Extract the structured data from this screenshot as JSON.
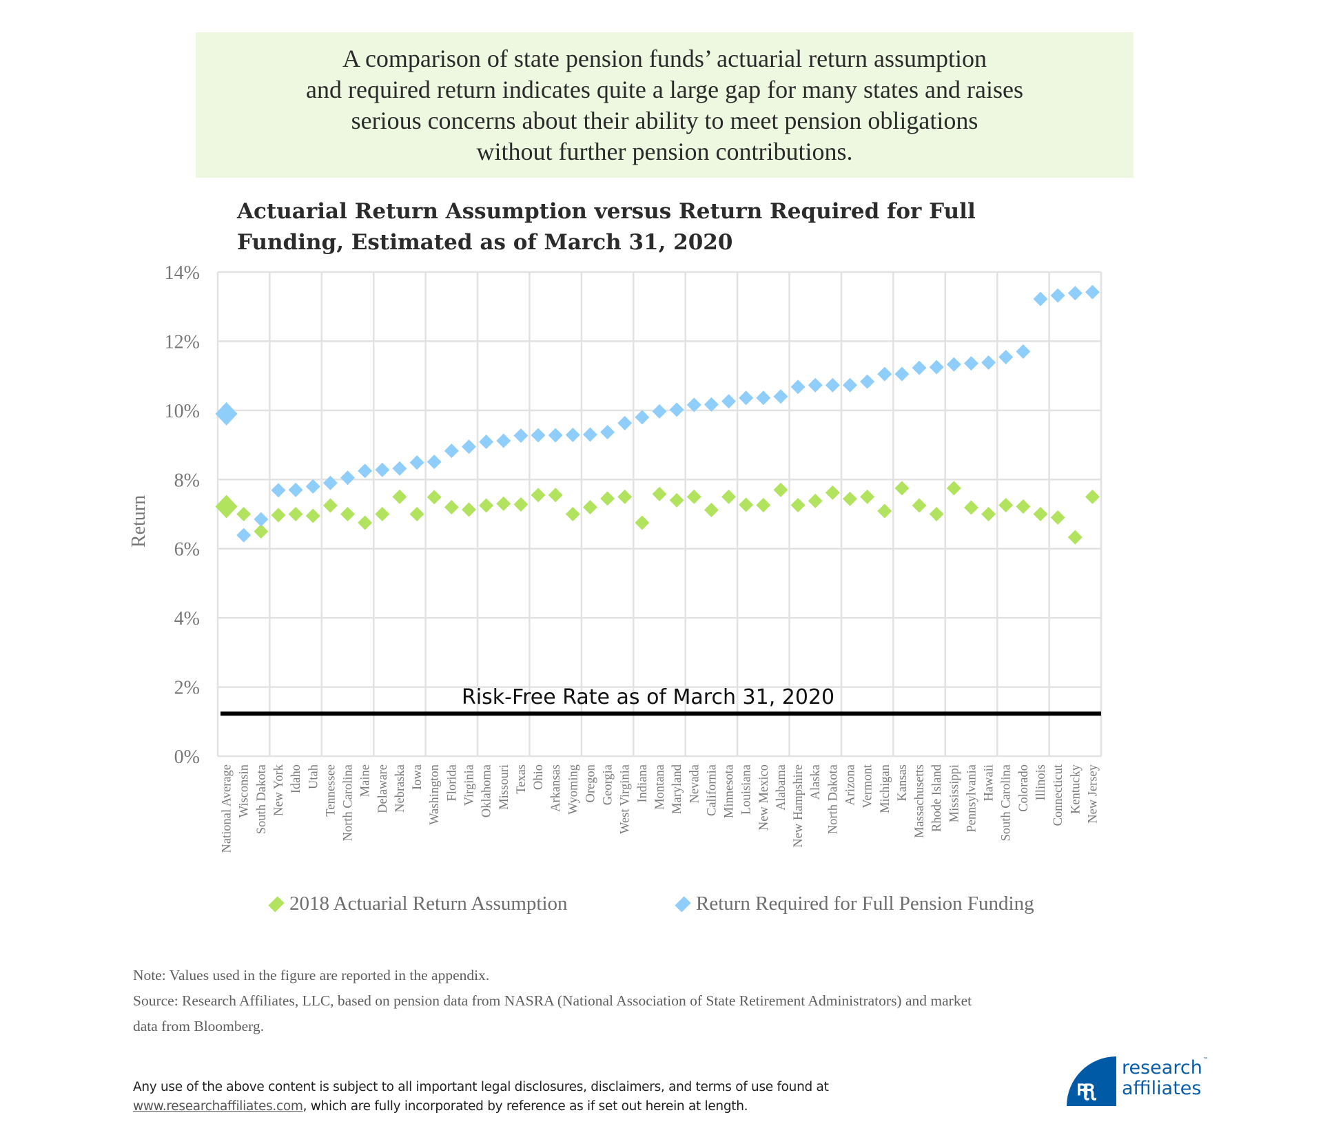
{
  "banner": {
    "lines": [
      "A comparison of state pension funds’ actuarial return assumption",
      "and required return indicates quite a large gap for many states and raises",
      "serious concerns about their ability to meet pension obligations",
      "without further pension contributions."
    ]
  },
  "chart_title_lines": [
    "Actuarial Return Assumption versus Return Required for Full",
    "Funding, Estimated as of March 31, 2020"
  ],
  "colors": {
    "actuarial": "#b1e35f",
    "required": "#8fcdfb",
    "grid": "#e2e2e2",
    "risk_free_line": "#000000",
    "banner_bg": "#eef8e0",
    "logo_blue": "#005aa5"
  },
  "chart_data": {
    "type": "scatter",
    "title": "Actuarial Return Assumption versus Return Required for Full Funding, Estimated as of March 31, 2020",
    "xlabel": "",
    "ylabel": "Return",
    "ylim": [
      0,
      14
    ],
    "yticks": [
      0,
      2,
      4,
      6,
      8,
      10,
      12,
      14
    ],
    "ytick_labels": [
      "0%",
      "2%",
      "4%",
      "6%",
      "8%",
      "10%",
      "12%",
      "14%"
    ],
    "grid": true,
    "grid_vertical_every_n_categories": 3,
    "legend_position": "bottom",
    "categories": [
      "National Average",
      "Wisconsin",
      "South Dakota",
      "New York",
      "Idaho",
      "Utah",
      "Tennessee",
      "North Carolina",
      "Maine",
      "Delaware",
      "Nebraska",
      "Iowa",
      "Washington",
      "Florida",
      "Virginia",
      "Oklahoma",
      "Missouri",
      "Texas",
      "Ohio",
      "Arkansas",
      "Wyoming",
      "Oregon",
      "Georgia",
      "West Virginia",
      "Indiana",
      "Montana",
      "Maryland",
      "Nevada",
      "California",
      "Minnesota",
      "Louisiana",
      "New Mexico",
      "Alabama",
      "New Hampshire",
      "Alaska",
      "North Dakota",
      "Arizona",
      "Vermont",
      "Michigan",
      "Kansas",
      "Massachusetts",
      "Rhode Island",
      "Mississippi",
      "Pennsylvania",
      "Hawaii",
      "South Carolina",
      "Colorado",
      "Illinois",
      "Connecticut",
      "Kentucky",
      "New Jersey"
    ],
    "series": [
      {
        "name": "2018 Actuarial Return Assumption",
        "marker": "diamond",
        "color": "#b1e35f",
        "values": [
          7.22,
          7.0,
          6.5,
          6.97,
          7.0,
          6.95,
          7.25,
          7.0,
          6.75,
          7.0,
          7.5,
          7.0,
          7.49,
          7.2,
          7.13,
          7.25,
          7.3,
          7.28,
          7.55,
          7.55,
          7.0,
          7.2,
          7.45,
          7.5,
          6.75,
          7.58,
          7.4,
          7.5,
          7.12,
          7.5,
          7.27,
          7.26,
          7.7,
          7.26,
          7.38,
          7.62,
          7.44,
          7.5,
          7.09,
          7.75,
          7.25,
          7.0,
          7.75,
          7.19,
          7.0,
          7.26,
          7.22,
          7.0,
          6.9,
          6.33,
          7.5
        ]
      },
      {
        "name": "Return Required for Full Pension Funding",
        "marker": "diamond",
        "color": "#8fcdfb",
        "values": [
          9.9,
          6.39,
          6.85,
          7.69,
          7.7,
          7.8,
          7.9,
          8.05,
          8.25,
          8.28,
          8.32,
          8.49,
          8.51,
          8.83,
          8.95,
          9.09,
          9.12,
          9.27,
          9.28,
          9.28,
          9.29,
          9.3,
          9.37,
          9.63,
          9.8,
          9.97,
          10.02,
          10.16,
          10.17,
          10.26,
          10.36,
          10.36,
          10.4,
          10.68,
          10.73,
          10.73,
          10.73,
          10.83,
          11.05,
          11.05,
          11.23,
          11.25,
          11.33,
          11.36,
          11.38,
          11.54,
          11.7,
          13.22,
          13.32,
          13.39,
          13.42
        ]
      }
    ],
    "annotations": [
      {
        "type": "hline",
        "y": 1.23,
        "label": "Risk-Free Rate as of March 31, 2020"
      }
    ],
    "highlighted_category": "National Average"
  },
  "legend": {
    "items": [
      {
        "label": "2018 Actuarial Return Assumption",
        "color": "#b1e35f"
      },
      {
        "label": "Return Required for Full Pension Funding",
        "color": "#8fcdfb"
      }
    ]
  },
  "notes": {
    "note": "Note: Values used in the figure are reported in the appendix.",
    "source_line1": "Source: Research Affiliates, LLC, based on pension data from NASRA (National Association of State Retirement Administrators) and market",
    "source_line2": "data from Bloomberg."
  },
  "disclaimer": {
    "line1": "Any use of the above content is subject to all important legal disclosures, disclaimers, and terms of use found at",
    "link_text": "www.researchaffiliates.com",
    "line2_rest": ", which are fully incorporated by reference as if set out herein at length."
  },
  "logo": {
    "mark_glyph": "ꭆꭆ",
    "line1": "research",
    "line2": "affiliates",
    "tm": "™"
  }
}
